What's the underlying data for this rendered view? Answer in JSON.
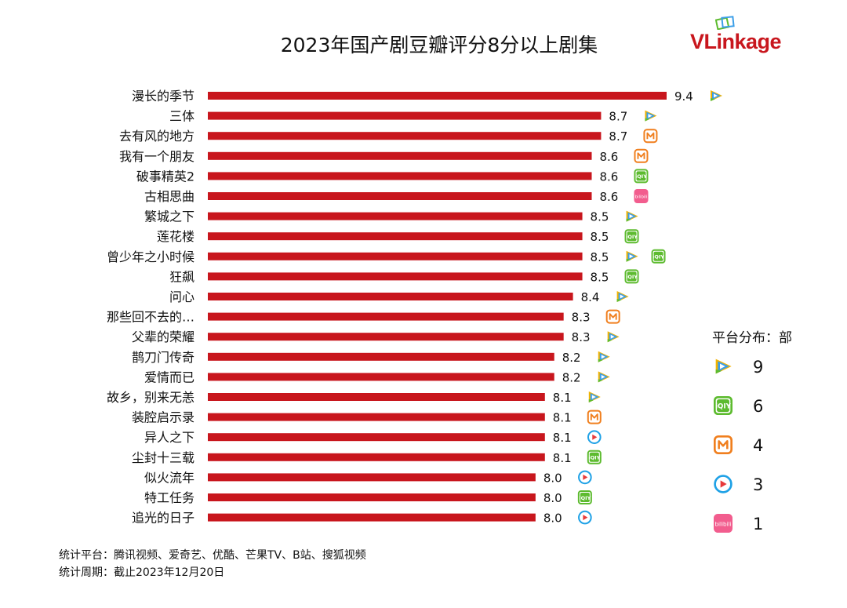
{
  "brand": {
    "logo_text_v": "VL",
    "logo_text_rest": "inkage",
    "accent": "#c8161d"
  },
  "chart_data": {
    "type": "bar",
    "orientation": "horizontal",
    "title": "2023年国产剧豆瓣评分8分以上剧集",
    "xlabel": "",
    "ylabel": "",
    "xlim": [
      4.5,
      9.4
    ],
    "grid": false,
    "bar_color": "#c8161d",
    "categories": [
      "漫长的季节",
      "三体",
      "去有风的地方",
      "我有一个朋友",
      "破事精英2",
      "古相思曲",
      "繁城之下",
      "莲花楼",
      "曾少年之小时候",
      "狂飙",
      "问心",
      "那些回不去的…",
      "父辈的荣耀",
      "鹊刀门传奇",
      "爱情而已",
      "故乡，别来无恙",
      "装腔启示录",
      "异人之下",
      "尘封十三载",
      "似火流年",
      "特工任务",
      "追光的日子"
    ],
    "values": [
      9.4,
      8.7,
      8.7,
      8.6,
      8.6,
      8.6,
      8.5,
      8.5,
      8.5,
      8.5,
      8.4,
      8.3,
      8.3,
      8.2,
      8.2,
      8.1,
      8.1,
      8.1,
      8.1,
      8.0,
      8.0,
      8.0
    ],
    "value_labels": [
      "9.4",
      "8.7",
      "8.7",
      "8.6",
      "8.6",
      "8.6",
      "8.5",
      "8.5",
      "8.5",
      "8.5",
      "8.4",
      "8.3",
      "8.3",
      "8.2",
      "8.2",
      "8.1",
      "8.1",
      "8.1",
      "8.1",
      "8.0",
      "8.0",
      "8.0"
    ],
    "platforms": [
      [
        "tencent"
      ],
      [
        "tencent"
      ],
      [
        "mango"
      ],
      [
        "mango"
      ],
      [
        "iqiyi"
      ],
      [
        "bilibili"
      ],
      [
        "tencent"
      ],
      [
        "iqiyi"
      ],
      [
        "tencent",
        "iqiyi"
      ],
      [
        "iqiyi"
      ],
      [
        "tencent"
      ],
      [
        "mango"
      ],
      [
        "tencent"
      ],
      [
        "tencent"
      ],
      [
        "tencent"
      ],
      [
        "tencent"
      ],
      [
        "mango"
      ],
      [
        "youku"
      ],
      [
        "iqiyi"
      ],
      [
        "youku"
      ],
      [
        "iqiyi"
      ],
      [
        "youku"
      ]
    ],
    "legend": {
      "title": "平台分布：部",
      "placement": "right",
      "entries": [
        {
          "platform": "tencent",
          "count": "9"
        },
        {
          "platform": "iqiyi",
          "count": "6"
        },
        {
          "platform": "mango",
          "count": "4"
        },
        {
          "platform": "youku",
          "count": "3"
        },
        {
          "platform": "bilibili",
          "count": "1"
        }
      ]
    }
  },
  "icons": {
    "tencent": {
      "name": "tencent-video-icon",
      "color": "#3a9ee8"
    },
    "iqiyi": {
      "name": "iqiyi-icon",
      "color": "#5dbb2f",
      "text": "iQIY"
    },
    "mango": {
      "name": "mango-tv-icon",
      "color": "#f07f1e"
    },
    "youku": {
      "name": "youku-icon",
      "color": "#1ea1e6"
    },
    "bilibili": {
      "name": "bilibili-icon",
      "color": "#f25d8e",
      "text": "bilibili"
    }
  },
  "footnotes": {
    "platforms": "统计平台：腾讯视频、爱奇艺、优酷、芒果TV、B站、搜狐视频",
    "period": "统计周期：截止2023年12月20日"
  }
}
